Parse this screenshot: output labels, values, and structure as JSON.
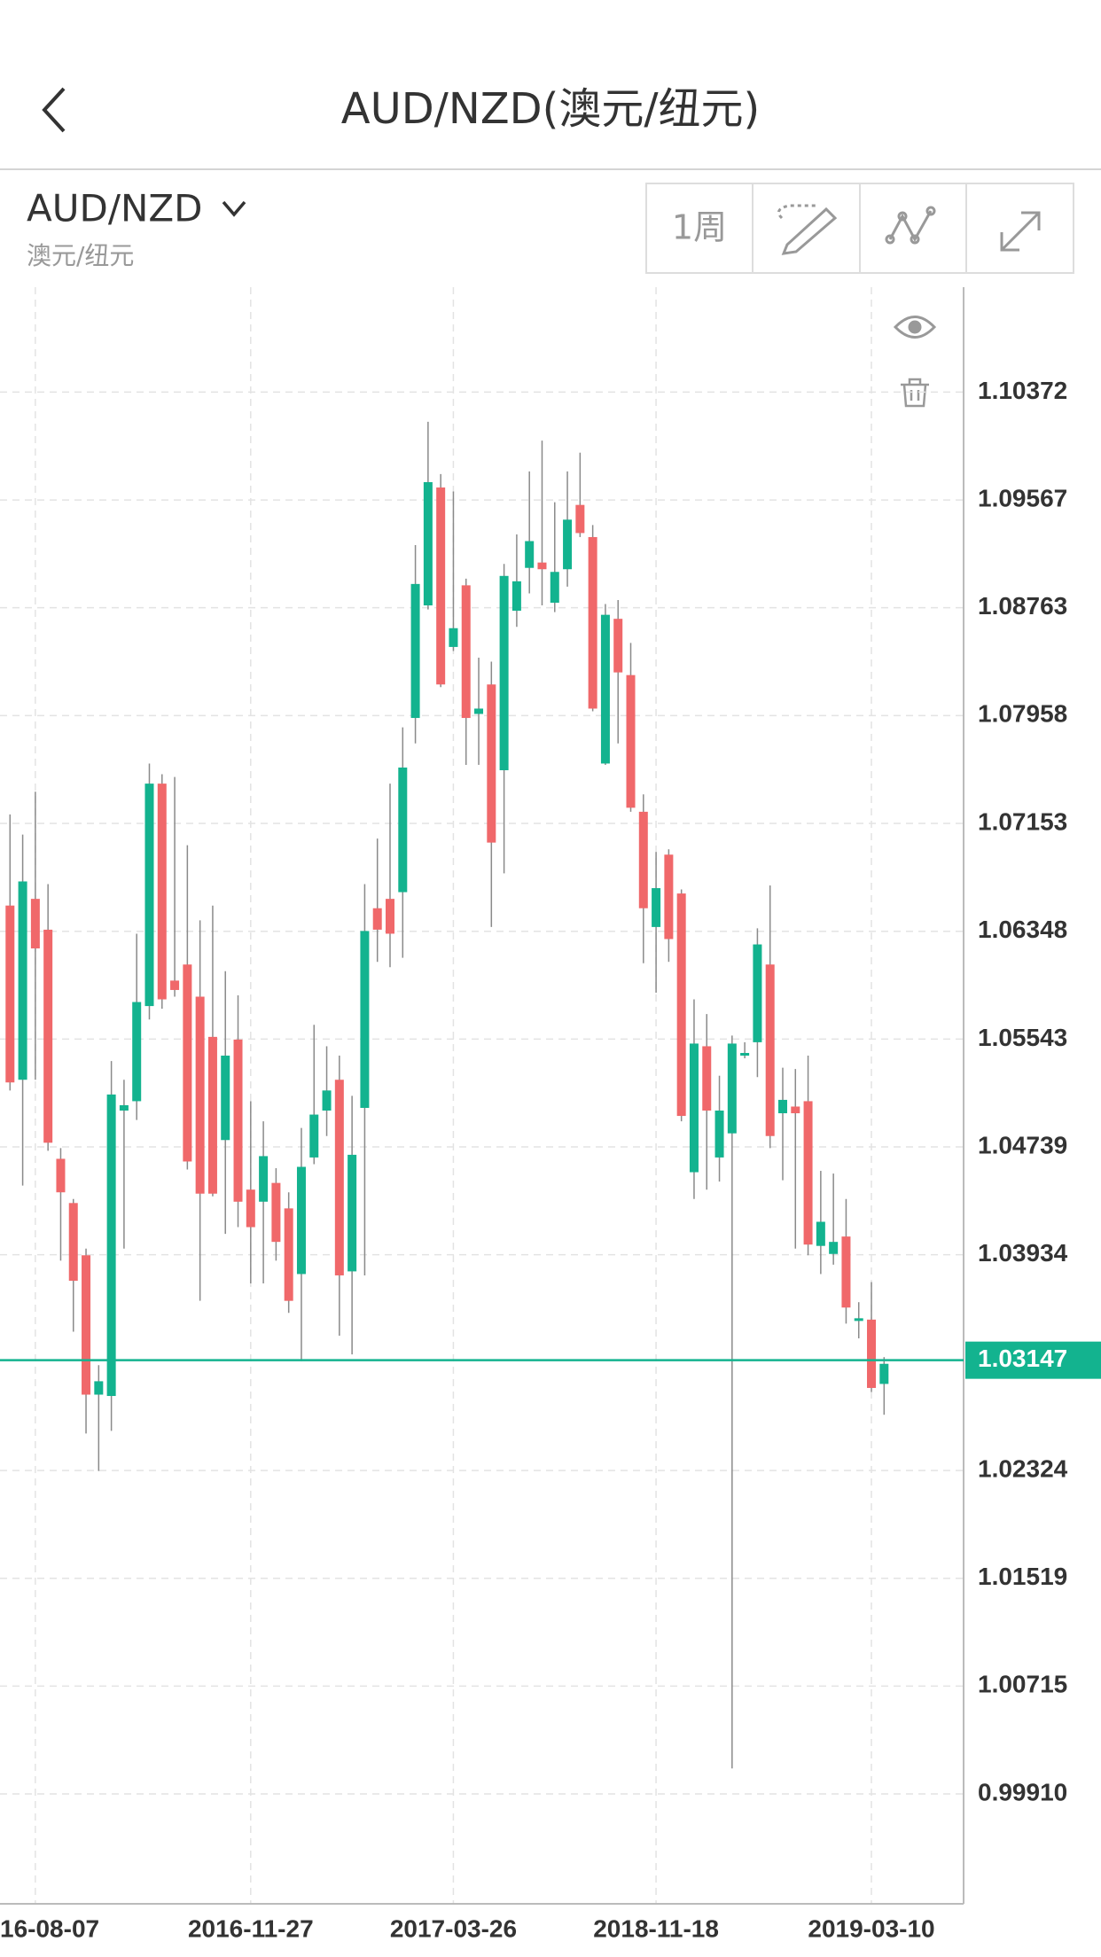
{
  "header": {
    "title": "AUD/NZD(澳元/纽元)"
  },
  "toolbar": {
    "symbol": "AUD/NZD",
    "subtitle": "澳元/纽元",
    "period": "1周"
  },
  "chart_data": {
    "type": "candlestick",
    "up_color": "#13b38f",
    "down_color": "#f0686a",
    "wick_color": "#8a8a8a",
    "grid": true,
    "categories": [
      null,
      null,
      "16-08-07",
      null,
      null,
      null,
      null,
      null,
      null,
      null,
      null,
      null,
      null,
      null,
      null,
      null,
      null,
      null,
      null,
      "2016-11-27",
      null,
      null,
      null,
      null,
      null,
      null,
      null,
      null,
      null,
      null,
      null,
      null,
      null,
      null,
      null,
      "2017-03-26",
      null,
      null,
      null,
      null,
      null,
      null,
      null,
      null,
      null,
      null,
      null,
      null,
      null,
      null,
      null,
      "2018-11-18",
      null,
      null,
      null,
      null,
      null,
      null,
      null,
      null,
      null,
      null,
      null,
      null,
      null,
      null,
      null,
      null,
      "2019-03-10",
      null
    ],
    "open": [
      1.0654,
      1.0524,
      1.0659,
      1.0636,
      1.0465,
      1.0432,
      1.0393,
      1.0289,
      1.0288,
      1.0501,
      1.0508,
      1.0579,
      1.0745,
      1.0598,
      1.061,
      1.0586,
      1.0556,
      1.0479,
      1.0554,
      1.0442,
      1.0433,
      1.0447,
      1.0428,
      1.0379,
      1.0466,
      1.0501,
      1.0524,
      1.0381,
      1.0503,
      1.0652,
      1.0659,
      1.0664,
      1.0794,
      1.0878,
      1.0966,
      1.0847,
      1.0893,
      1.0797,
      1.0819,
      1.0755,
      1.0874,
      1.0906,
      1.091,
      1.088,
      1.0905,
      1.0953,
      1.0929,
      1.076,
      1.0868,
      1.0826,
      1.0724,
      1.0638,
      1.0692,
      1.0663,
      1.0455,
      1.0549,
      1.0466,
      1.0484,
      1.0542,
      1.0552,
      1.061,
      1.0499,
      1.0504,
      1.0508,
      1.04,
      1.0394,
      1.0407,
      1.0344,
      1.0345,
      1.0297
    ],
    "high": [
      1.0722,
      1.0707,
      1.0739,
      1.067,
      1.0473,
      1.0435,
      1.0398,
      1.0311,
      1.0538,
      1.0524,
      1.0633,
      1.076,
      1.0752,
      1.075,
      1.0699,
      1.0643,
      1.0654,
      1.0605,
      1.0587,
      1.0508,
      1.0493,
      1.0458,
      1.044,
      1.0488,
      1.0565,
      1.0549,
      1.0542,
      1.0512,
      1.067,
      1.0704,
      1.0745,
      1.0787,
      1.0923,
      1.1015,
      1.0976,
      1.0963,
      1.0898,
      1.0839,
      1.0836,
      1.0909,
      1.0931,
      1.0978,
      1.1001,
      1.0955,
      1.0978,
      1.0992,
      1.0938,
      1.0879,
      1.0882,
      1.085,
      1.0737,
      1.0694,
      1.0696,
      1.0666,
      1.0584,
      1.0573,
      1.0527,
      1.0557,
      1.0552,
      1.0637,
      1.0669,
      1.0533,
      1.0532,
      1.0542,
      1.0456,
      1.0454,
      1.0435,
      1.0358,
      1.0373,
      1.0317
    ],
    "low": [
      1.0516,
      1.0445,
      1.0524,
      1.0471,
      1.0389,
      1.0336,
      1.026,
      1.0232,
      1.0262,
      1.0398,
      1.0494,
      1.0569,
      1.0577,
      1.0586,
      1.0457,
      1.0359,
      1.0437,
      1.0409,
      1.0414,
      1.0372,
      1.0372,
      1.0389,
      1.035,
      1.0314,
      1.0461,
      1.0482,
      1.0333,
      1.0319,
      1.0378,
      1.0612,
      1.0608,
      1.0615,
      1.0775,
      1.0875,
      1.0817,
      1.0844,
      1.0759,
      1.0759,
      1.0638,
      1.0678,
      1.0862,
      1.0887,
      1.0878,
      1.0873,
      1.0892,
      1.0929,
      1.0799,
      1.0759,
      1.0775,
      1.0724,
      1.0611,
      1.0589,
      1.0612,
      1.0493,
      1.0435,
      1.0442,
      1.0448,
      1.001,
      1.054,
      1.0526,
      1.0473,
      1.0449,
      1.0398,
      1.0393,
      1.0379,
      1.0386,
      1.0342,
      1.0331,
      1.0291,
      1.0274
    ],
    "close": [
      1.0522,
      1.0672,
      1.0622,
      1.0477,
      1.044,
      1.0374,
      1.0289,
      1.0299,
      1.0513,
      1.0505,
      1.0582,
      1.0745,
      1.0584,
      1.0591,
      1.0463,
      1.0439,
      1.0439,
      1.0542,
      1.0433,
      1.0414,
      1.0467,
      1.0403,
      1.0359,
      1.0459,
      1.0498,
      1.0516,
      1.0378,
      1.0468,
      1.0635,
      1.0636,
      1.0633,
      1.0757,
      1.0894,
      1.097,
      1.0819,
      1.0861,
      1.0794,
      1.0801,
      1.0701,
      1.09,
      1.0896,
      1.0926,
      1.0905,
      1.0903,
      1.0942,
      1.0932,
      1.0801,
      1.0871,
      1.0828,
      1.0727,
      1.0652,
      1.0667,
      1.0629,
      1.0497,
      1.0551,
      1.0501,
      1.0501,
      1.0551,
      1.0544,
      1.0625,
      1.0482,
      1.0509,
      1.0499,
      1.0401,
      1.0418,
      1.0403,
      1.0354,
      1.0346,
      1.0294,
      1.0312
    ],
    "last_price": 1.03147,
    "last_price_color": "#13b38f",
    "ylim": [
      0.9909,
      1.11155
    ],
    "yticks": [
      1.10372,
      1.09567,
      1.08763,
      1.07958,
      1.07153,
      1.06348,
      1.05543,
      1.04739,
      1.03934,
      1.02324,
      1.01519,
      1.00715,
      {
        "value": 0.9991,
        "label": "0.99910"
      }
    ]
  }
}
